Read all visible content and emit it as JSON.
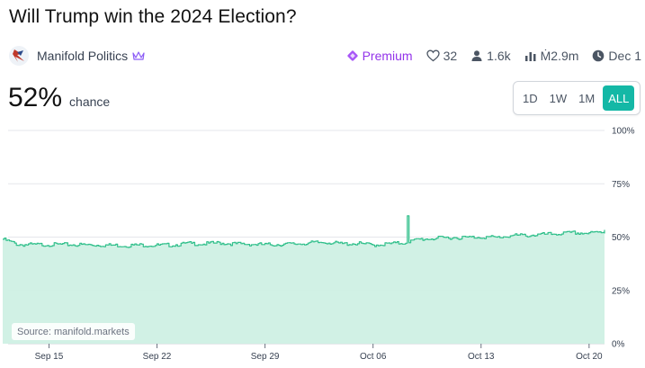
{
  "market": {
    "title": "Will Trump win the 2024 Election?",
    "group": "Manifold Politics",
    "premium_label": "Premium",
    "likes": "32",
    "traders": "1.6k",
    "volume": "Ṁ2.9m",
    "close_date": "Dec 1"
  },
  "probability": {
    "value": "52%",
    "label": "chance"
  },
  "time_range": {
    "options": [
      "1D",
      "1W",
      "1M",
      "ALL"
    ],
    "selected": "ALL"
  },
  "source": "Source: manifold.markets",
  "colors": {
    "accent": "#14b8a6",
    "line": "#2fbf8a",
    "area": "#cff0e4",
    "premium": "#9333ea"
  },
  "chart_data": {
    "type": "area",
    "title": "",
    "xlabel": "",
    "ylabel": "",
    "x_ticks": [
      "Sep 15",
      "Sep 22",
      "Sep 29",
      "Oct 06",
      "Oct 13",
      "Oct 20"
    ],
    "y_ticks": [
      "0%",
      "25%",
      "50%",
      "75%",
      "100%"
    ],
    "ylim": [
      0,
      100
    ],
    "xlim": [
      "2024-09-12",
      "2024-10-21"
    ],
    "grid": true,
    "series": [
      {
        "name": "",
        "x": [
          "2024-09-12",
          "2024-09-13",
          "2024-09-14",
          "2024-09-15",
          "2024-09-16",
          "2024-09-17",
          "2024-09-18",
          "2024-09-19",
          "2024-09-20",
          "2024-09-21",
          "2024-09-22",
          "2024-09-23",
          "2024-09-24",
          "2024-09-25",
          "2024-09-26",
          "2024-09-27",
          "2024-09-28",
          "2024-09-29",
          "2024-09-30",
          "2024-10-01",
          "2024-10-02",
          "2024-10-03",
          "2024-10-04",
          "2024-10-05",
          "2024-10-06",
          "2024-10-07",
          "2024-10-08",
          "2024-10-09",
          "2024-10-10",
          "2024-10-11",
          "2024-10-12",
          "2024-10-13",
          "2024-10-14",
          "2024-10-15",
          "2024-10-16",
          "2024-10-17",
          "2024-10-18",
          "2024-10-19",
          "2024-10-20",
          "2024-10-21"
        ],
        "values": [
          49,
          46.5,
          46.4,
          46.5,
          46.5,
          46.4,
          46.3,
          46.2,
          46.0,
          46.3,
          46.1,
          46.3,
          47.0,
          46.8,
          47.3,
          46.8,
          46.7,
          46.4,
          46.6,
          46.8,
          47.3,
          47.6,
          46.8,
          47.0,
          46.3,
          46.8,
          47.3,
          49.0,
          49.4,
          49.8,
          49.8,
          50.1,
          49.8,
          50.7,
          50.8,
          51.2,
          51.6,
          52.0,
          51.8,
          52.5
        ]
      }
    ]
  }
}
